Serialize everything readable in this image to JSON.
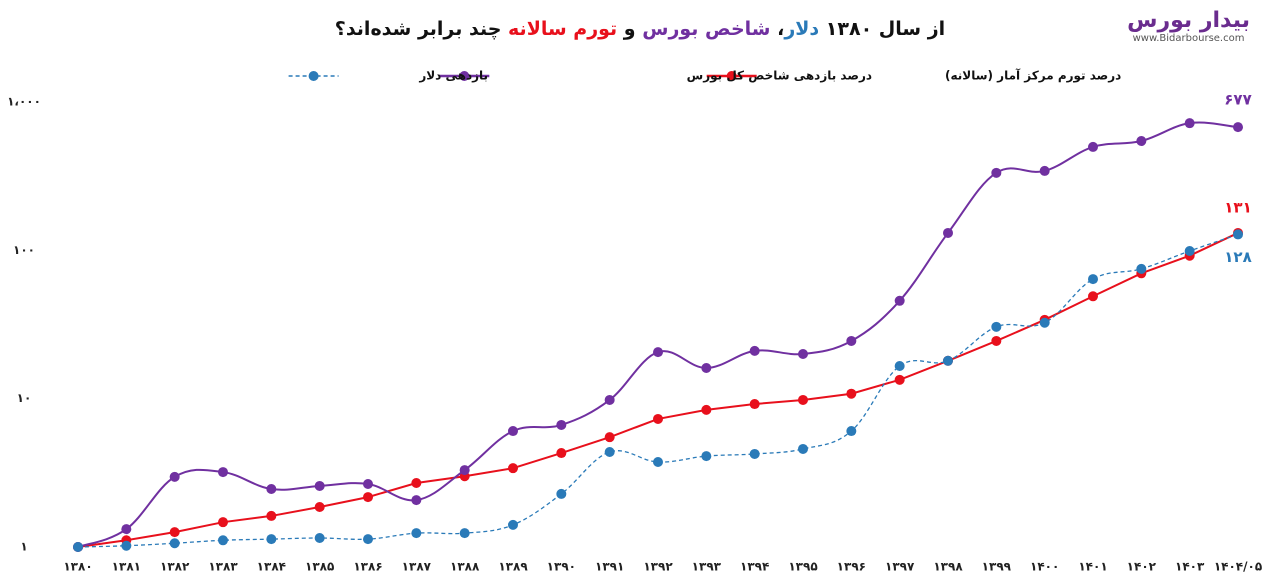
{
  "logo": {
    "name": "بیدار بورس",
    "url": "www.Bidarbourse.com"
  },
  "chart_data": {
    "type": "line",
    "title": [
      {
        "text": "از سال ۱۳۸۰ ",
        "color": "#111111"
      },
      {
        "text": "دلار",
        "color": "#2a7ab8"
      },
      {
        "text": "، ",
        "color": "#111111"
      },
      {
        "text": "شاخص بورس",
        "color": "#7030a0"
      },
      {
        "text": " و ",
        "color": "#111111"
      },
      {
        "text": "تورم سالانه",
        "color": "#e8101c"
      },
      {
        "text": " چند برابر شده‌اند؟",
        "color": "#111111"
      }
    ],
    "categories": [
      "۱۳۸۰",
      "۱۳۸۱",
      "۱۳۸۲",
      "۱۳۸۳",
      "۱۳۸۴",
      "۱۳۸۵",
      "۱۳۸۶",
      "۱۳۸۷",
      "۱۳۸۸",
      "۱۳۸۹",
      "۱۳۹۰",
      "۱۳۹۱",
      "۱۳۹۲",
      "۱۳۹۳",
      "۱۳۹۴",
      "۱۳۹۵",
      "۱۳۹۶",
      "۱۳۹۷",
      "۱۳۹۸",
      "۱۳۹۹",
      "۱۴۰۰",
      "۱۴۰۱",
      "۱۴۰۲",
      "۱۴۰۳",
      "۱۴۰۴/۰۵"
    ],
    "series": [
      {
        "name": "درصد تورم مرکز آمار (سالانه)",
        "color": "#e8101c",
        "smooth": false,
        "dashed": false,
        "values": [
          1,
          1.11,
          1.26,
          1.47,
          1.62,
          1.86,
          2.17,
          2.7,
          3.0,
          3.4,
          4.3,
          5.5,
          7.3,
          8.4,
          9.2,
          9.8,
          10.8,
          13.4,
          18,
          24.5,
          34,
          49,
          70,
          92,
          131
        ],
        "value_labels": [
          null,
          null,
          null,
          null,
          null,
          null,
          null,
          null,
          null,
          null,
          null,
          null,
          null,
          null,
          null,
          null,
          null,
          null,
          null,
          null,
          null,
          null,
          null,
          null,
          "۱۳۱"
        ]
      },
      {
        "name": "درصد بازدهی شاخص کل بورس",
        "color": "#7030a0",
        "smooth": true,
        "dashed": false,
        "values": [
          1,
          1.32,
          2.97,
          3.2,
          2.46,
          2.58,
          2.66,
          2.07,
          3.3,
          6.05,
          6.65,
          9.8,
          20.6,
          16.1,
          21,
          20,
          24.5,
          45.7,
          131,
          333,
          343,
          498,
          546,
          720,
          677
        ],
        "value_labels": [
          null,
          null,
          null,
          null,
          null,
          null,
          null,
          null,
          null,
          null,
          null,
          null,
          null,
          null,
          null,
          null,
          null,
          null,
          null,
          null,
          null,
          null,
          null,
          null,
          "۶۷۷"
        ]
      },
      {
        "name": "بازدهی دلار",
        "color": "#2a7ab8",
        "smooth": true,
        "dashed": true,
        "values": [
          1,
          1.02,
          1.06,
          1.11,
          1.13,
          1.15,
          1.13,
          1.24,
          1.24,
          1.41,
          2.28,
          4.37,
          3.74,
          4.1,
          4.24,
          4.58,
          6.05,
          16.6,
          18,
          30.5,
          32.5,
          64,
          75,
          99,
          128
        ],
        "value_labels": [
          null,
          null,
          null,
          null,
          null,
          null,
          null,
          null,
          null,
          null,
          null,
          null,
          null,
          null,
          null,
          null,
          null,
          null,
          null,
          null,
          null,
          null,
          null,
          null,
          "۱۲۸"
        ]
      }
    ],
    "yscale": "log",
    "ylim": [
      1,
      1000
    ],
    "yticks": [
      {
        "value": 1,
        "label": "۱"
      },
      {
        "value": 10,
        "label": "۱۰"
      },
      {
        "value": 100,
        "label": "۱۰۰"
      },
      {
        "value": 1000,
        "label": "۱،۰۰۰"
      }
    ],
    "legend": "top"
  }
}
